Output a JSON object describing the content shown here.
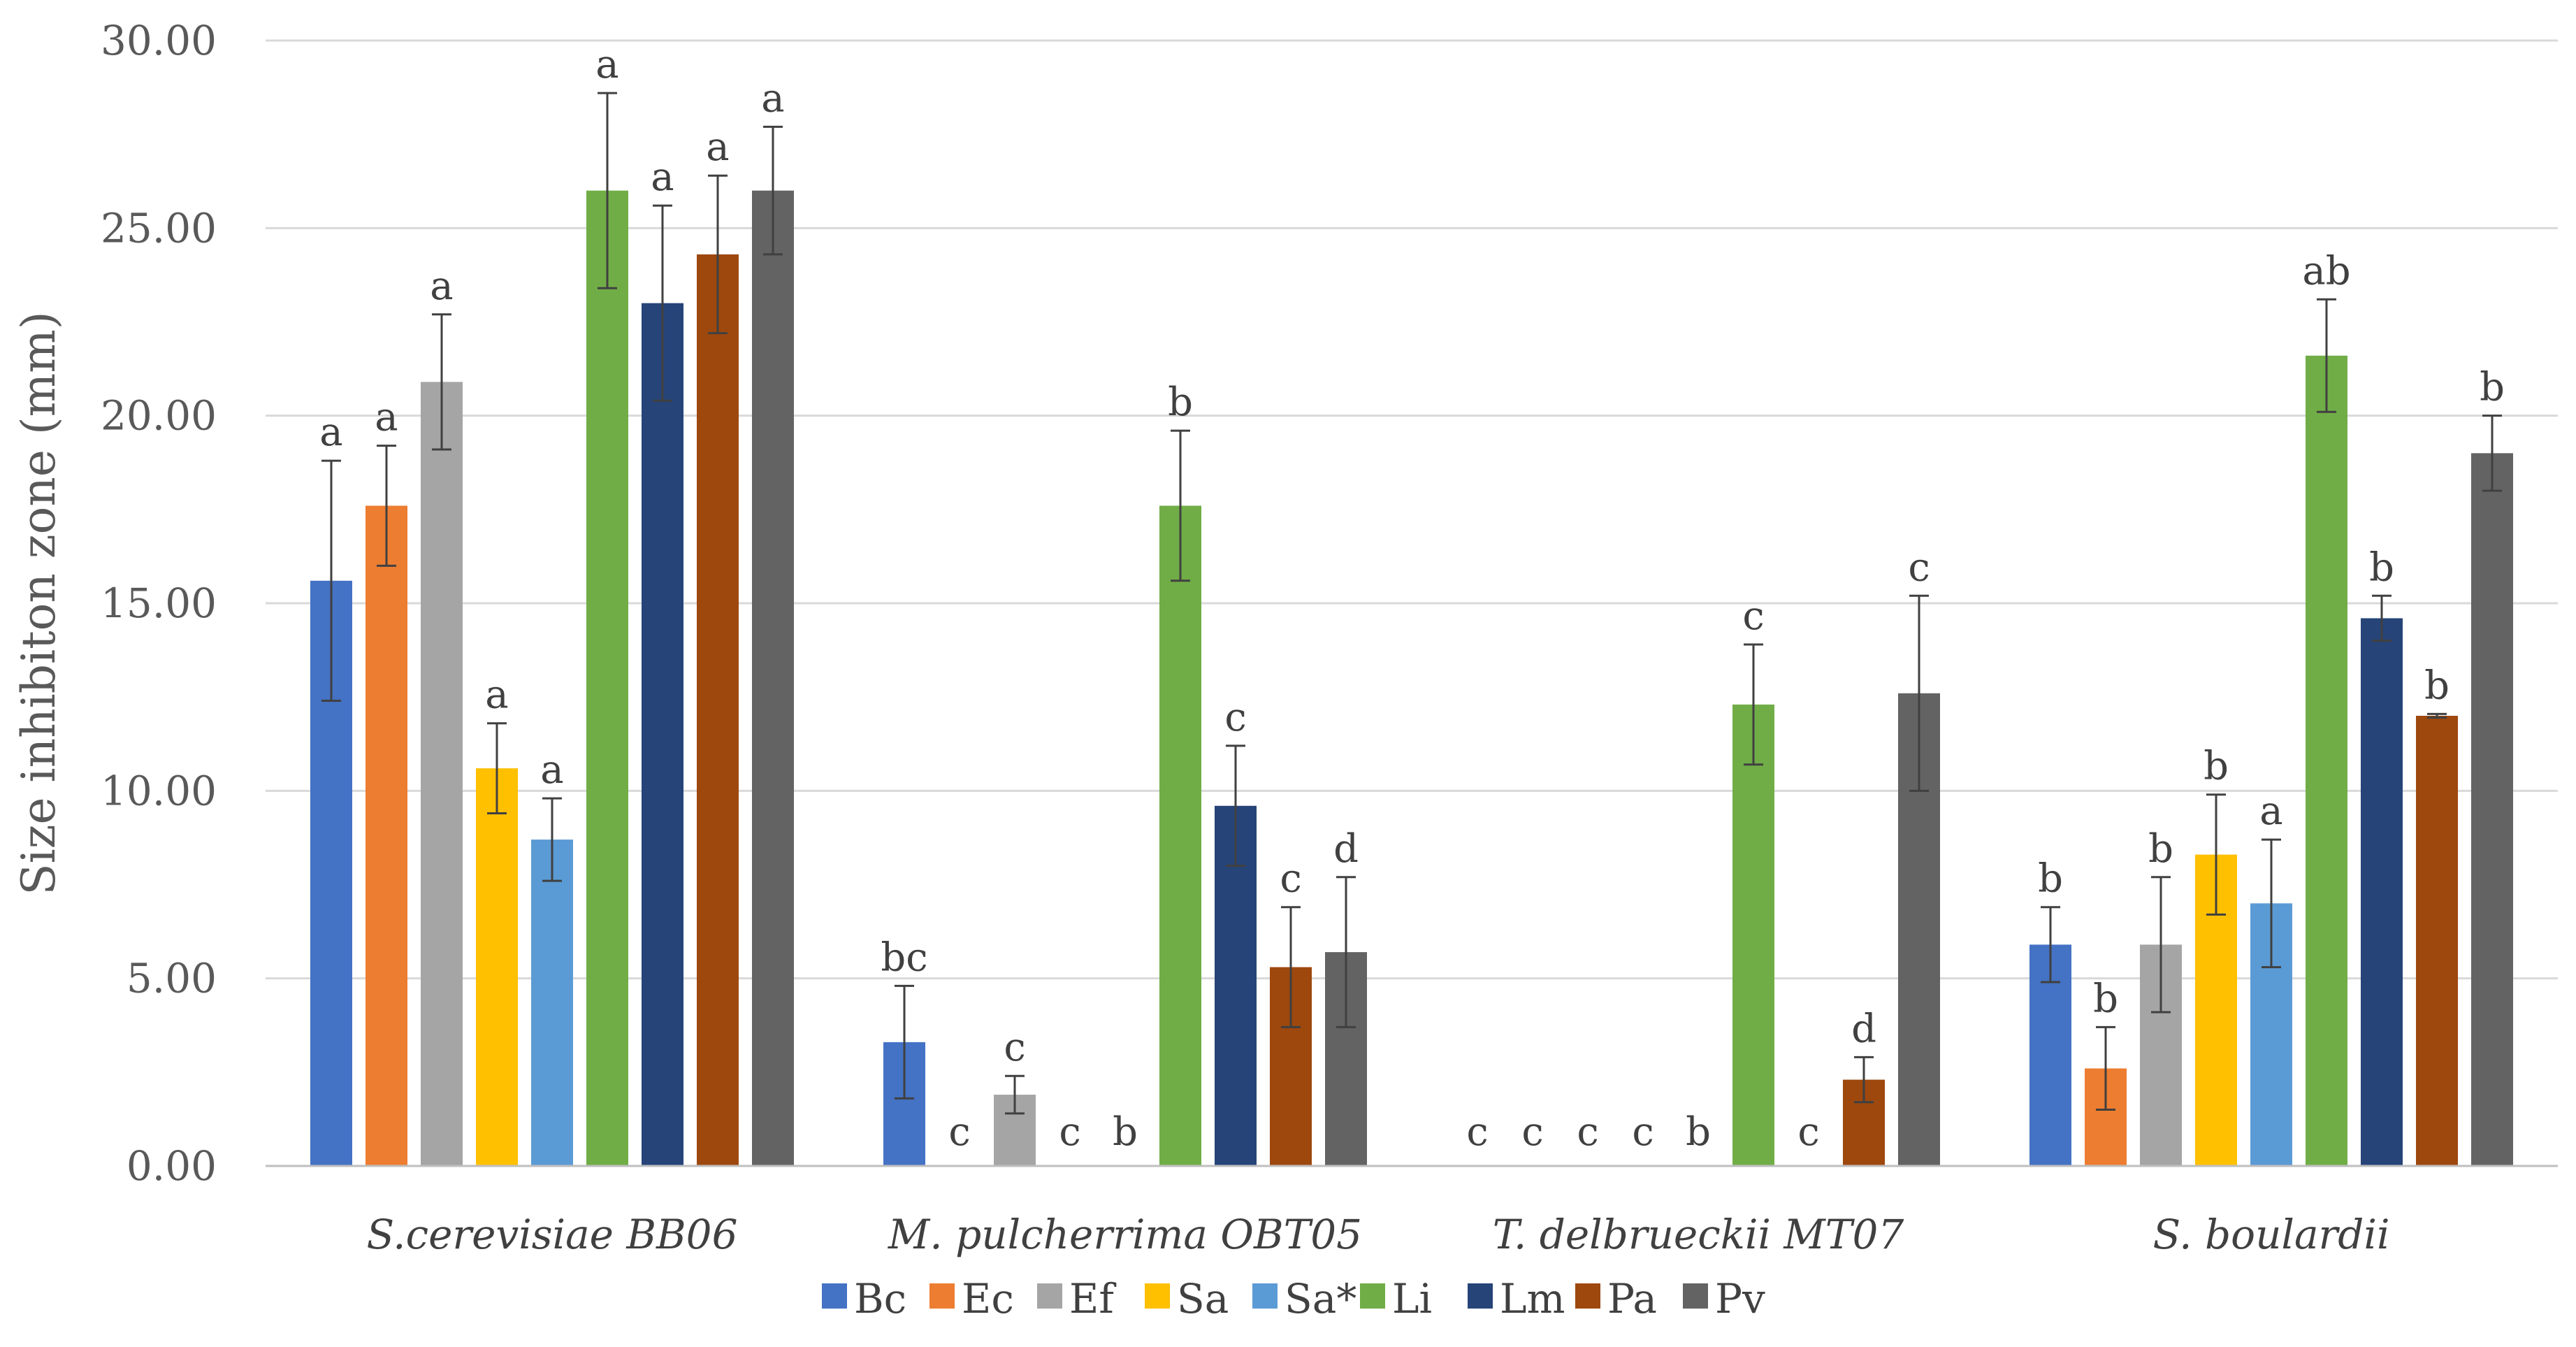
{
  "chart_data": {
    "type": "bar",
    "ylabel": "Size inhibiton zone (mm)",
    "xlabel": "",
    "title": "",
    "ylim": [
      0,
      30
    ],
    "yticks": [
      0,
      5,
      10,
      15,
      20,
      25,
      30
    ],
    "ytick_labels": [
      "0.00",
      "5.00",
      "10.00",
      "15.00",
      "20.00",
      "25.00",
      "30.00"
    ],
    "grid": true,
    "legend_position": "bottom",
    "categories": [
      "S.cerevisiae BB06",
      "M. pulcherrima OBT05",
      "T. delbrueckii MT07",
      "S. boulardii"
    ],
    "series": [
      {
        "name": "Bc",
        "color": "#4472C4",
        "values": [
          15.6,
          3.3,
          0,
          5.9
        ],
        "errors": [
          3.2,
          1.5,
          0,
          1.0
        ],
        "labels": [
          "a",
          "bc",
          "c",
          "b"
        ]
      },
      {
        "name": "Ec",
        "color": "#ED7D31",
        "values": [
          17.6,
          0,
          0,
          2.6
        ],
        "errors": [
          1.6,
          0,
          0,
          1.1
        ],
        "labels": [
          "a",
          "c",
          "c",
          "b"
        ]
      },
      {
        "name": "Ef",
        "color": "#A5A5A5",
        "values": [
          20.9,
          1.9,
          0,
          5.9
        ],
        "errors": [
          1.8,
          0.5,
          0,
          1.8
        ],
        "labels": [
          "a",
          "c",
          "c",
          "b"
        ]
      },
      {
        "name": "Sa",
        "color": "#FFC000",
        "values": [
          10.6,
          0,
          0,
          8.3
        ],
        "errors": [
          1.2,
          0,
          0,
          1.6
        ],
        "labels": [
          "a",
          "c",
          "c",
          "b"
        ]
      },
      {
        "name": "Sa*",
        "color": "#5B9BD5",
        "values": [
          8.7,
          0,
          0,
          7.0
        ],
        "errors": [
          1.1,
          0,
          0,
          1.7
        ],
        "labels": [
          "a",
          "b",
          "b",
          "a"
        ]
      },
      {
        "name": "Li",
        "color": "#70AD47",
        "values": [
          26.0,
          17.6,
          12.3,
          21.6
        ],
        "errors": [
          2.6,
          2.0,
          1.6,
          1.5
        ],
        "labels": [
          "a",
          "b",
          "c",
          "ab"
        ]
      },
      {
        "name": "Lm",
        "color": "#264478",
        "values": [
          23.0,
          9.6,
          0,
          14.6
        ],
        "errors": [
          2.6,
          1.6,
          0,
          0.6
        ],
        "labels": [
          "a",
          "c",
          "c",
          "b"
        ]
      },
      {
        "name": "Pa",
        "color": "#9E480E",
        "values": [
          24.3,
          5.3,
          2.3,
          12.0
        ],
        "errors": [
          2.1,
          1.6,
          0.6,
          0.05
        ],
        "labels": [
          "a",
          "c",
          "d",
          "b"
        ]
      },
      {
        "name": "Pv",
        "color": "#636363",
        "values": [
          26.0,
          5.7,
          12.6,
          19.0
        ],
        "errors": [
          1.7,
          2.0,
          2.6,
          1.0
        ],
        "labels": [
          "a",
          "d",
          "c",
          "b"
        ]
      }
    ]
  }
}
